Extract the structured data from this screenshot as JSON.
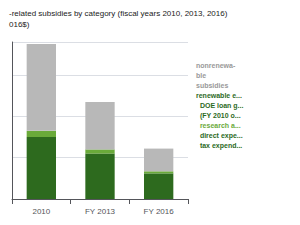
{
  "chart_data": {
    "type": "bar",
    "title": "-related subsidies by category (fiscal years 2010, 2013, 2016)",
    "subtitle": "016$)",
    "categories": [
      "2010",
      "FY 2013",
      "FY 2016"
    ],
    "series": [
      {
        "color": "#2d6a1e",
        "values": [
          15.0,
          11.0,
          6.2
        ]
      },
      {
        "color": "#6aaa3a",
        "values": [
          1.5,
          1.0,
          0.5
        ]
      },
      {
        "color": "#b8b8b8",
        "values": [
          21.0,
          11.5,
          5.5
        ]
      }
    ],
    "stacked": true,
    "ylim": [
      0,
      38
    ],
    "yticks": [
      0,
      10,
      20,
      30
    ],
    "grid": true,
    "tick_labels": "x",
    "annotations": [
      {
        "text": "nonrenewa-",
        "color": "#999999"
      },
      {
        "text": "ble",
        "color": "#999999"
      },
      {
        "text": "subsidies",
        "color": "#999999"
      },
      {
        "text": "renewable e...",
        "color": "#2d6a1e"
      },
      {
        "text": "  DOE loan g...",
        "color": "#2d6a1e"
      },
      {
        "text": "  (FY 2010 o...",
        "color": "#2d6a1e"
      },
      {
        "text": "  research a...",
        "color": "#6aaa3a"
      },
      {
        "text": "  direct expe...",
        "color": "#2d6a1e"
      },
      {
        "text": "  tax expend...",
        "color": "#2d6a1e"
      }
    ]
  }
}
